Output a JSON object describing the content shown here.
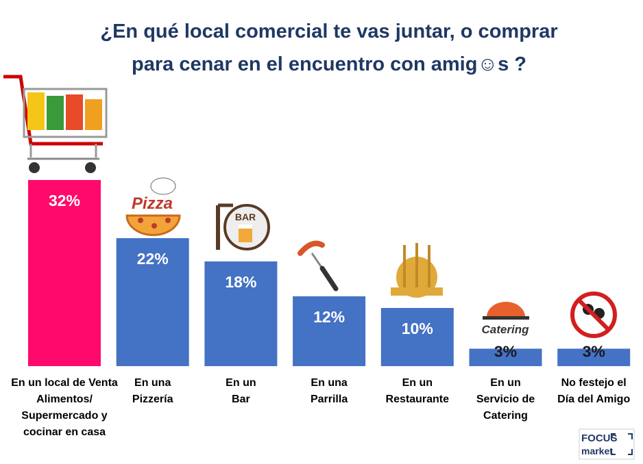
{
  "chart_data": {
    "type": "bar",
    "title": "¿En qué local comercial te vas juntar, o comprar\npara cenar en el encuentro con amig☺s ?",
    "categories": [
      "En un local de Venta\nAlimentos/\nSupermercado y\ncocinar en casa",
      "En una\nPizzería",
      "En un\nBar",
      "En una\nParrilla",
      "En un\nRestaurante",
      "En un\nServicio de\nCatering",
      "No festejo el\nDía del Amigo"
    ],
    "values": [
      32,
      22,
      18,
      12,
      10,
      3,
      3
    ],
    "value_labels": [
      "32%",
      "22%",
      "18%",
      "12%",
      "10%",
      "3%",
      "3%"
    ],
    "colors": [
      "#ff0a6c",
      "#4472c4",
      "#4472c4",
      "#4472c4",
      "#4472c4",
      "#4472c4",
      "#4472c4"
    ]
  },
  "icons": {
    "pizza": "Pizza",
    "bar": "BAR",
    "catering": "Catering"
  },
  "logo": {
    "line1": "FOCUS",
    "line2": "market"
  }
}
